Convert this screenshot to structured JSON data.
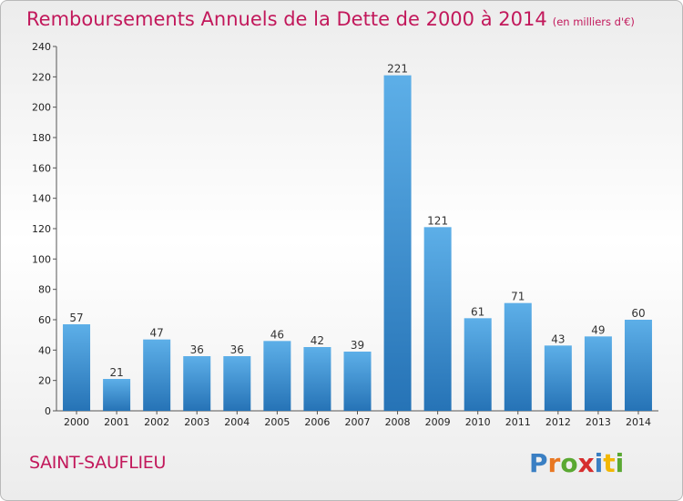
{
  "title": "Remboursements Annuels de la Dette de 2000 à 2014",
  "unit": "(en milliers d'€)",
  "commune": "SAINT-SAUFLIEU",
  "logo_text": "Proxiti",
  "colors": {
    "title": "#c2185b",
    "bar_top": "#5dafe8",
    "bar_bottom": "#2673b6"
  },
  "chart_data": {
    "type": "bar",
    "categories": [
      "2000",
      "2001",
      "2002",
      "2003",
      "2004",
      "2005",
      "2006",
      "2007",
      "2008",
      "2009",
      "2010",
      "2011",
      "2012",
      "2013",
      "2014"
    ],
    "values": [
      57,
      21,
      47,
      36,
      36,
      46,
      42,
      39,
      221,
      121,
      61,
      71,
      43,
      49,
      60
    ],
    "ylim": [
      0,
      240
    ],
    "yticks": [
      0,
      20,
      40,
      60,
      80,
      100,
      120,
      140,
      160,
      180,
      200,
      220,
      240
    ],
    "grid": false,
    "data_labels": true
  }
}
